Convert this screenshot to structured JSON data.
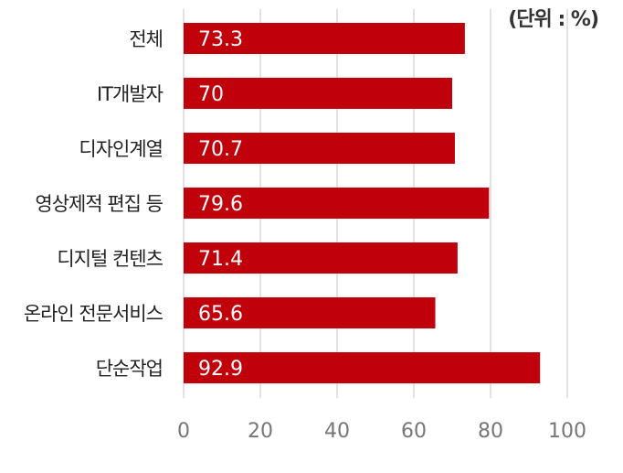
{
  "chart_data": {
    "type": "bar",
    "orientation": "horizontal",
    "unit_label": "(단위 : %)",
    "categories": [
      "전체",
      "IT개발자",
      "디자인계열",
      "영상제적 편집 등",
      "디지털 컨텐츠",
      "온라인 전문서비스",
      "단순작업"
    ],
    "values": [
      73.3,
      70,
      70.7,
      79.6,
      71.4,
      65.6,
      92.9
    ],
    "value_labels": [
      "73.3",
      "70",
      "70.7",
      "79.6",
      "71.4",
      "65.6",
      "92.9"
    ],
    "x_ticks": [
      "0",
      "20",
      "40",
      "60",
      "80",
      "100"
    ],
    "xlim": [
      0,
      100
    ],
    "grid": true,
    "legend": "none",
    "bar_color": "#c0000b",
    "grid_color": "#d9d9d9"
  }
}
